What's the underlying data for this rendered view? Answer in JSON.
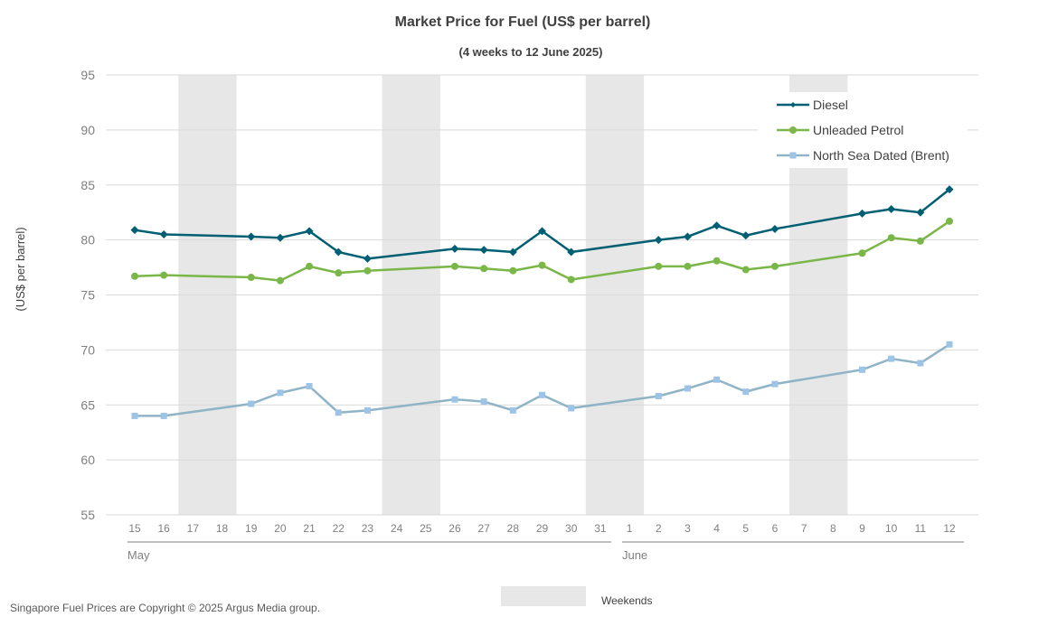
{
  "chart_data": {
    "type": "line",
    "title": "Market Price for Fuel (US$ per barrel)",
    "subtitle": "(4 weeks to 12 June 2025)",
    "ylabel": "(US$ per barrel)",
    "ylim": [
      55,
      95
    ],
    "yticks": [
      55,
      60,
      65,
      70,
      75,
      80,
      85,
      90,
      95
    ],
    "grid": true,
    "legend_position": "top-right",
    "categories": [
      "15",
      "16",
      "17",
      "18",
      "19",
      "20",
      "21",
      "22",
      "23",
      "24",
      "25",
      "26",
      "27",
      "28",
      "29",
      "30",
      "31",
      "1",
      "2",
      "3",
      "4",
      "5",
      "6",
      "7",
      "8",
      "9",
      "10",
      "11",
      "12"
    ],
    "month_labels": [
      {
        "label": "May",
        "start_index": 0,
        "end_index": 16
      },
      {
        "label": "June",
        "start_index": 17,
        "end_index": 28
      }
    ],
    "weekends": [
      [
        2,
        3
      ],
      [
        9,
        10
      ],
      [
        16,
        17
      ],
      [
        23,
        24
      ]
    ],
    "weekend_legend_label": "Weekends",
    "series": [
      {
        "name": "Diesel",
        "color": "#005F73",
        "marker": "diamond",
        "values": [
          80.9,
          80.5,
          null,
          null,
          80.3,
          80.2,
          80.8,
          78.9,
          78.3,
          null,
          null,
          79.2,
          79.1,
          78.9,
          80.8,
          78.9,
          null,
          null,
          80.0,
          80.3,
          81.3,
          80.4,
          81.0,
          null,
          null,
          82.4,
          82.8,
          82.5,
          84.6
        ]
      },
      {
        "name": "Unleaded Petrol",
        "color": "#7AB648",
        "marker": "circle",
        "values": [
          76.7,
          76.8,
          null,
          null,
          76.6,
          76.3,
          77.6,
          77.0,
          77.2,
          null,
          null,
          77.6,
          77.4,
          77.2,
          77.7,
          76.4,
          null,
          null,
          77.6,
          77.6,
          78.1,
          77.3,
          77.6,
          null,
          null,
          78.8,
          80.2,
          79.9,
          81.7
        ]
      },
      {
        "name": "North Sea Dated (Brent)",
        "color": "#8FB4C6",
        "marker_color": "#9DC3E6",
        "marker": "square",
        "values": [
          64.0,
          64.0,
          null,
          null,
          65.1,
          66.1,
          66.7,
          64.3,
          64.5,
          null,
          null,
          65.5,
          65.3,
          64.5,
          65.9,
          64.7,
          null,
          null,
          65.8,
          66.5,
          67.3,
          66.2,
          66.9,
          null,
          null,
          68.2,
          69.2,
          68.8,
          70.5
        ]
      }
    ]
  },
  "footer": {
    "copyright": "Singapore Fuel Prices are Copyright © 2025 Argus Media group."
  },
  "colors": {
    "weekend_fill": "#E7E7E7",
    "grid": "#D9D9D9"
  }
}
